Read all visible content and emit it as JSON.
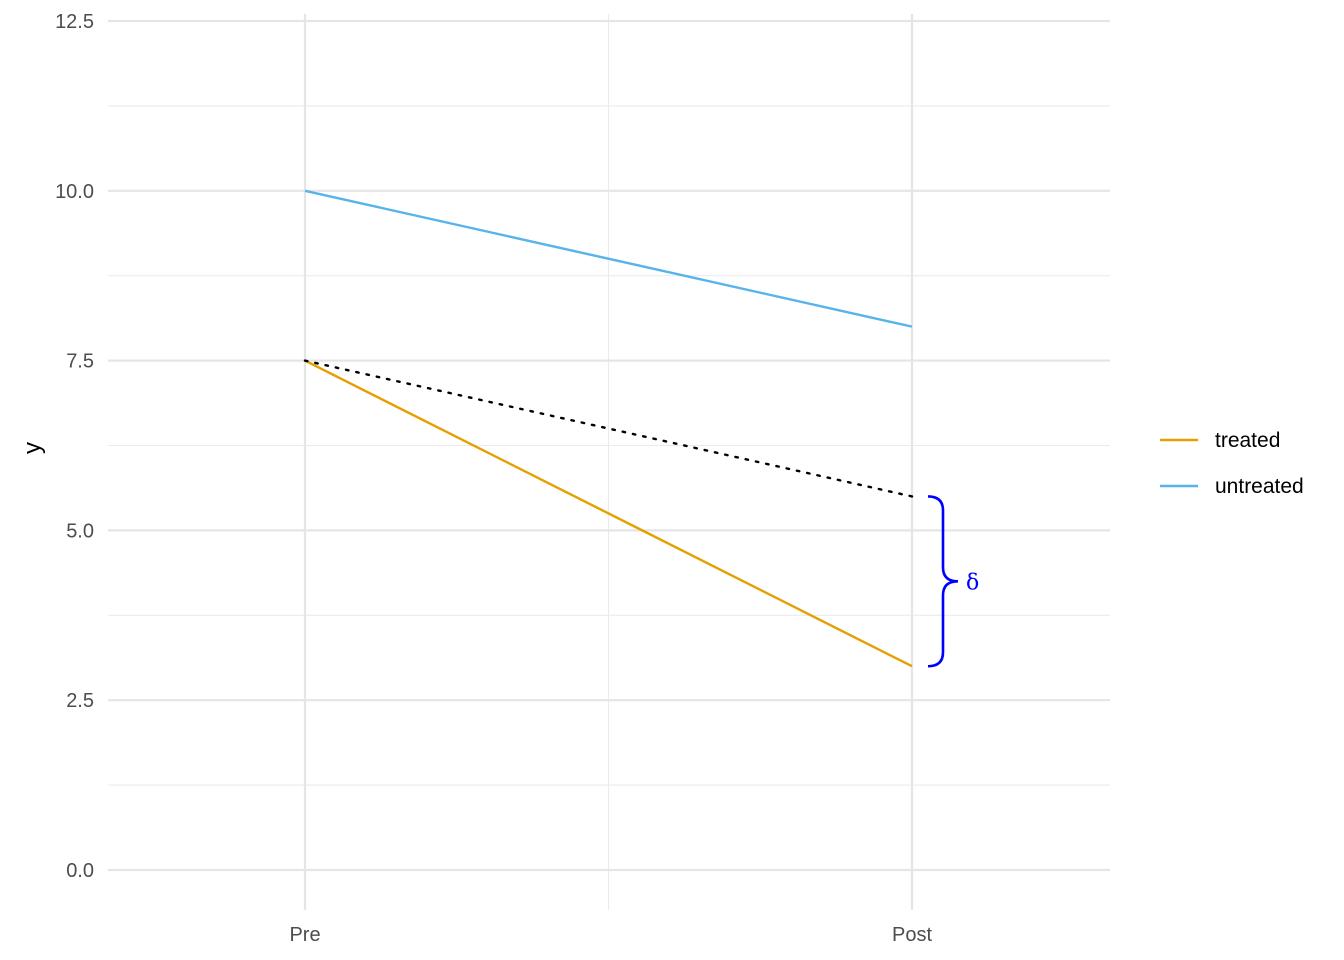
{
  "chart_data": {
    "type": "line",
    "categories": [
      "Pre",
      "Post"
    ],
    "xlabel": "",
    "ylabel": "y",
    "ylim": [
      0,
      12.5
    ],
    "yticks": [
      0.0,
      2.5,
      5.0,
      7.5,
      10.0,
      12.5
    ],
    "ytick_labels": [
      "0.0",
      "2.5",
      "5.0",
      "7.5",
      "10.0",
      "12.5"
    ],
    "grid": true,
    "legend_position": "right",
    "series": [
      {
        "name": "treated",
        "values": [
          7.5,
          3.0
        ],
        "color": "#E69F00"
      },
      {
        "name": "untreated",
        "values": [
          10.0,
          8.0
        ],
        "color": "#56B4E9"
      }
    ],
    "counterfactual": {
      "values": [
        7.5,
        5.5
      ],
      "color": "#000000",
      "style": "dotted"
    },
    "annotation": {
      "label": "δ",
      "from": 3.0,
      "to": 5.5,
      "color": "#0000FF"
    }
  }
}
